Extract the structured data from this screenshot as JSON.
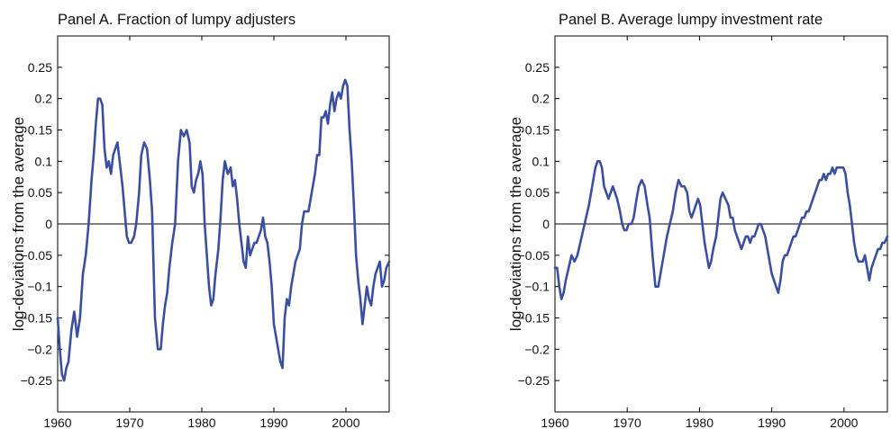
{
  "chart_data": [
    {
      "type": "line",
      "title": "Panel A. Fraction of lumpy adjusters",
      "xlabel": "",
      "ylabel": "log-deviations from the average",
      "xlim": [
        1960,
        2006
      ],
      "ylim": [
        -0.3,
        0.3
      ],
      "xticks": [
        1960,
        1970,
        1980,
        1990,
        2000
      ],
      "yticks": [
        0.25,
        0.2,
        0.15,
        0.1,
        0.05,
        0,
        -0.05,
        -0.1,
        -0.15,
        -0.2,
        -0.25
      ],
      "ytick_labels": [
        "0.25",
        "0.2",
        "0.15",
        "0.1",
        "0.05",
        "0",
        "−0.05",
        "−0.1",
        "−0.15",
        "−0.2",
        "−0.25"
      ],
      "zero_line": true,
      "grid": false,
      "color": "#3b4fa0",
      "x": [
        1960.0,
        1960.3,
        1960.6,
        1960.9,
        1961.2,
        1961.5,
        1961.9,
        1962.3,
        1962.7,
        1963.1,
        1963.5,
        1963.9,
        1964.3,
        1964.7,
        1965.0,
        1965.3,
        1965.6,
        1965.9,
        1966.2,
        1966.5,
        1966.8,
        1967.1,
        1967.4,
        1967.7,
        1968.0,
        1968.3,
        1968.6,
        1969.0,
        1969.3,
        1969.6,
        1969.9,
        1970.2,
        1970.6,
        1970.9,
        1971.3,
        1971.6,
        1972.0,
        1972.4,
        1972.8,
        1973.1,
        1973.5,
        1973.9,
        1974.3,
        1974.6,
        1974.9,
        1975.2,
        1975.5,
        1975.9,
        1976.3,
        1976.7,
        1977.1,
        1977.5,
        1977.9,
        1978.3,
        1978.6,
        1978.9,
        1979.2,
        1979.5,
        1979.8,
        1980.1,
        1980.4,
        1980.7,
        1981.0,
        1981.3,
        1981.6,
        1981.9,
        1982.3,
        1982.6,
        1982.9,
        1983.2,
        1983.6,
        1984.0,
        1984.3,
        1984.6,
        1984.9,
        1985.2,
        1985.5,
        1985.8,
        1986.1,
        1986.4,
        1986.7,
        1987.0,
        1987.3,
        1987.6,
        1987.9,
        1988.2,
        1988.5,
        1988.8,
        1989.1,
        1989.4,
        1989.7,
        1990.0,
        1990.3,
        1990.6,
        1990.9,
        1991.2,
        1991.5,
        1991.8,
        1992.1,
        1992.4,
        1992.7,
        1993.0,
        1993.3,
        1993.6,
        1993.9,
        1994.2,
        1994.5,
        1994.8,
        1995.1,
        1995.4,
        1995.7,
        1996.0,
        1996.3,
        1996.6,
        1996.9,
        1997.2,
        1997.5,
        1997.8,
        1998.1,
        1998.4,
        1998.7,
        1999.0,
        1999.3,
        1999.6,
        1999.9,
        2000.2,
        2000.5,
        2000.8,
        2001.1,
        2001.4,
        2001.7,
        2002.0,
        2002.3,
        2002.6,
        2002.9,
        2003.2,
        2003.5,
        2003.8,
        2004.1,
        2004.4,
        2004.7,
        2005.0,
        2005.3,
        2005.6,
        2006.0
      ],
      "y": [
        -0.15,
        -0.2,
        -0.24,
        -0.25,
        -0.23,
        -0.22,
        -0.17,
        -0.14,
        -0.18,
        -0.15,
        -0.08,
        -0.05,
        0.0,
        0.07,
        0.11,
        0.16,
        0.2,
        0.2,
        0.19,
        0.12,
        0.09,
        0.1,
        0.08,
        0.11,
        0.12,
        0.13,
        0.1,
        0.06,
        0.02,
        -0.02,
        -0.03,
        -0.03,
        -0.02,
        0.0,
        0.05,
        0.11,
        0.13,
        0.12,
        0.07,
        0.02,
        -0.15,
        -0.2,
        -0.2,
        -0.16,
        -0.13,
        -0.11,
        -0.07,
        -0.03,
        0.0,
        0.1,
        0.15,
        0.14,
        0.15,
        0.13,
        0.06,
        0.05,
        0.07,
        0.08,
        0.1,
        0.08,
        0.0,
        -0.05,
        -0.1,
        -0.13,
        -0.12,
        -0.08,
        -0.04,
        0.01,
        0.07,
        0.1,
        0.08,
        0.09,
        0.06,
        0.07,
        0.04,
        0.0,
        -0.03,
        -0.06,
        -0.07,
        -0.02,
        -0.05,
        -0.04,
        -0.03,
        -0.03,
        -0.02,
        -0.01,
        0.01,
        -0.02,
        -0.03,
        -0.06,
        -0.1,
        -0.16,
        -0.18,
        -0.2,
        -0.22,
        -0.23,
        -0.15,
        -0.12,
        -0.13,
        -0.1,
        -0.08,
        -0.06,
        -0.05,
        -0.04,
        0.0,
        0.02,
        0.02,
        0.02,
        0.04,
        0.06,
        0.08,
        0.11,
        0.11,
        0.17,
        0.17,
        0.18,
        0.16,
        0.19,
        0.21,
        0.18,
        0.2,
        0.21,
        0.2,
        0.22,
        0.23,
        0.22,
        0.15,
        0.1,
        0.03,
        -0.05,
        -0.09,
        -0.12,
        -0.16,
        -0.13,
        -0.1,
        -0.12,
        -0.13,
        -0.1,
        -0.08,
        -0.07,
        -0.06,
        -0.1,
        -0.09,
        -0.07,
        -0.06
      ]
    },
    {
      "type": "line",
      "title": "Panel B. Average lumpy investment rate",
      "xlabel": "",
      "ylabel": "log-deviations from the average",
      "xlim": [
        1960,
        2006
      ],
      "ylim": [
        -0.3,
        0.3
      ],
      "xticks": [
        1960,
        1970,
        1980,
        1990,
        2000
      ],
      "yticks": [
        0.25,
        0.2,
        0.15,
        0.1,
        0.05,
        0,
        -0.05,
        -0.1,
        -0.15,
        -0.2,
        -0.25
      ],
      "ytick_labels": [
        "0.25",
        "0.2",
        "0.15",
        "0.1",
        "0.05",
        "0",
        "−0.05",
        "−0.1",
        "−0.15",
        "−0.2",
        "−0.25"
      ],
      "zero_line": true,
      "grid": false,
      "color": "#3b4fa0",
      "x": [
        1960.0,
        1960.3,
        1960.6,
        1960.9,
        1961.2,
        1961.5,
        1961.9,
        1962.3,
        1962.7,
        1963.1,
        1963.5,
        1963.9,
        1964.3,
        1964.7,
        1965.0,
        1965.3,
        1965.6,
        1965.9,
        1966.2,
        1966.5,
        1966.8,
        1967.1,
        1967.4,
        1967.7,
        1968.0,
        1968.3,
        1968.6,
        1969.0,
        1969.3,
        1969.6,
        1969.9,
        1970.2,
        1970.6,
        1970.9,
        1971.3,
        1971.6,
        1972.0,
        1972.4,
        1972.8,
        1973.1,
        1973.5,
        1973.9,
        1974.3,
        1974.6,
        1974.9,
        1975.2,
        1975.5,
        1975.9,
        1976.3,
        1976.7,
        1977.1,
        1977.5,
        1977.9,
        1978.3,
        1978.6,
        1978.9,
        1979.2,
        1979.5,
        1979.8,
        1980.1,
        1980.4,
        1980.7,
        1981.0,
        1981.3,
        1981.6,
        1981.9,
        1982.3,
        1982.6,
        1982.9,
        1983.2,
        1983.6,
        1984.0,
        1984.3,
        1984.6,
        1984.9,
        1985.2,
        1985.5,
        1985.8,
        1986.1,
        1986.4,
        1986.7,
        1987.0,
        1987.3,
        1987.6,
        1987.9,
        1988.2,
        1988.5,
        1988.8,
        1989.1,
        1989.4,
        1989.7,
        1990.0,
        1990.3,
        1990.6,
        1990.9,
        1991.2,
        1991.5,
        1991.8,
        1992.1,
        1992.4,
        1992.7,
        1993.0,
        1993.3,
        1993.6,
        1993.9,
        1994.2,
        1994.5,
        1994.8,
        1995.1,
        1995.4,
        1995.7,
        1996.0,
        1996.3,
        1996.6,
        1996.9,
        1997.2,
        1997.5,
        1997.8,
        1998.1,
        1998.4,
        1998.7,
        1999.0,
        1999.3,
        1999.6,
        1999.9,
        2000.2,
        2000.5,
        2000.8,
        2001.1,
        2001.4,
        2001.7,
        2002.0,
        2002.3,
        2002.6,
        2002.9,
        2003.2,
        2003.5,
        2003.8,
        2004.1,
        2004.4,
        2004.7,
        2005.0,
        2005.3,
        2005.6,
        2006.0
      ],
      "y": [
        -0.07,
        -0.07,
        -0.1,
        -0.12,
        -0.11,
        -0.09,
        -0.07,
        -0.05,
        -0.06,
        -0.05,
        -0.03,
        -0.01,
        0.01,
        0.03,
        0.05,
        0.07,
        0.09,
        0.1,
        0.1,
        0.09,
        0.06,
        0.05,
        0.04,
        0.05,
        0.06,
        0.05,
        0.04,
        0.02,
        0.0,
        -0.01,
        -0.01,
        0.0,
        0.0,
        0.01,
        0.04,
        0.06,
        0.07,
        0.06,
        0.03,
        0.01,
        -0.05,
        -0.1,
        -0.1,
        -0.08,
        -0.06,
        -0.04,
        -0.02,
        0.0,
        0.02,
        0.05,
        0.07,
        0.06,
        0.06,
        0.05,
        0.02,
        0.01,
        0.02,
        0.03,
        0.04,
        0.03,
        0.0,
        -0.03,
        -0.05,
        -0.07,
        -0.06,
        -0.04,
        -0.02,
        0.01,
        0.04,
        0.05,
        0.04,
        0.03,
        0.01,
        0.01,
        -0.01,
        -0.02,
        -0.03,
        -0.04,
        -0.03,
        -0.02,
        -0.02,
        -0.03,
        -0.02,
        -0.02,
        -0.01,
        0.0,
        0.0,
        -0.01,
        -0.02,
        -0.04,
        -0.06,
        -0.08,
        -0.09,
        -0.1,
        -0.11,
        -0.09,
        -0.06,
        -0.05,
        -0.05,
        -0.04,
        -0.03,
        -0.02,
        -0.02,
        -0.01,
        0.0,
        0.01,
        0.01,
        0.02,
        0.02,
        0.03,
        0.04,
        0.05,
        0.06,
        0.07,
        0.07,
        0.08,
        0.07,
        0.08,
        0.08,
        0.09,
        0.08,
        0.09,
        0.09,
        0.09,
        0.09,
        0.08,
        0.05,
        0.03,
        0.0,
        -0.03,
        -0.05,
        -0.06,
        -0.06,
        -0.06,
        -0.05,
        -0.07,
        -0.09,
        -0.07,
        -0.06,
        -0.05,
        -0.04,
        -0.04,
        -0.03,
        -0.03,
        -0.02
      ]
    }
  ]
}
